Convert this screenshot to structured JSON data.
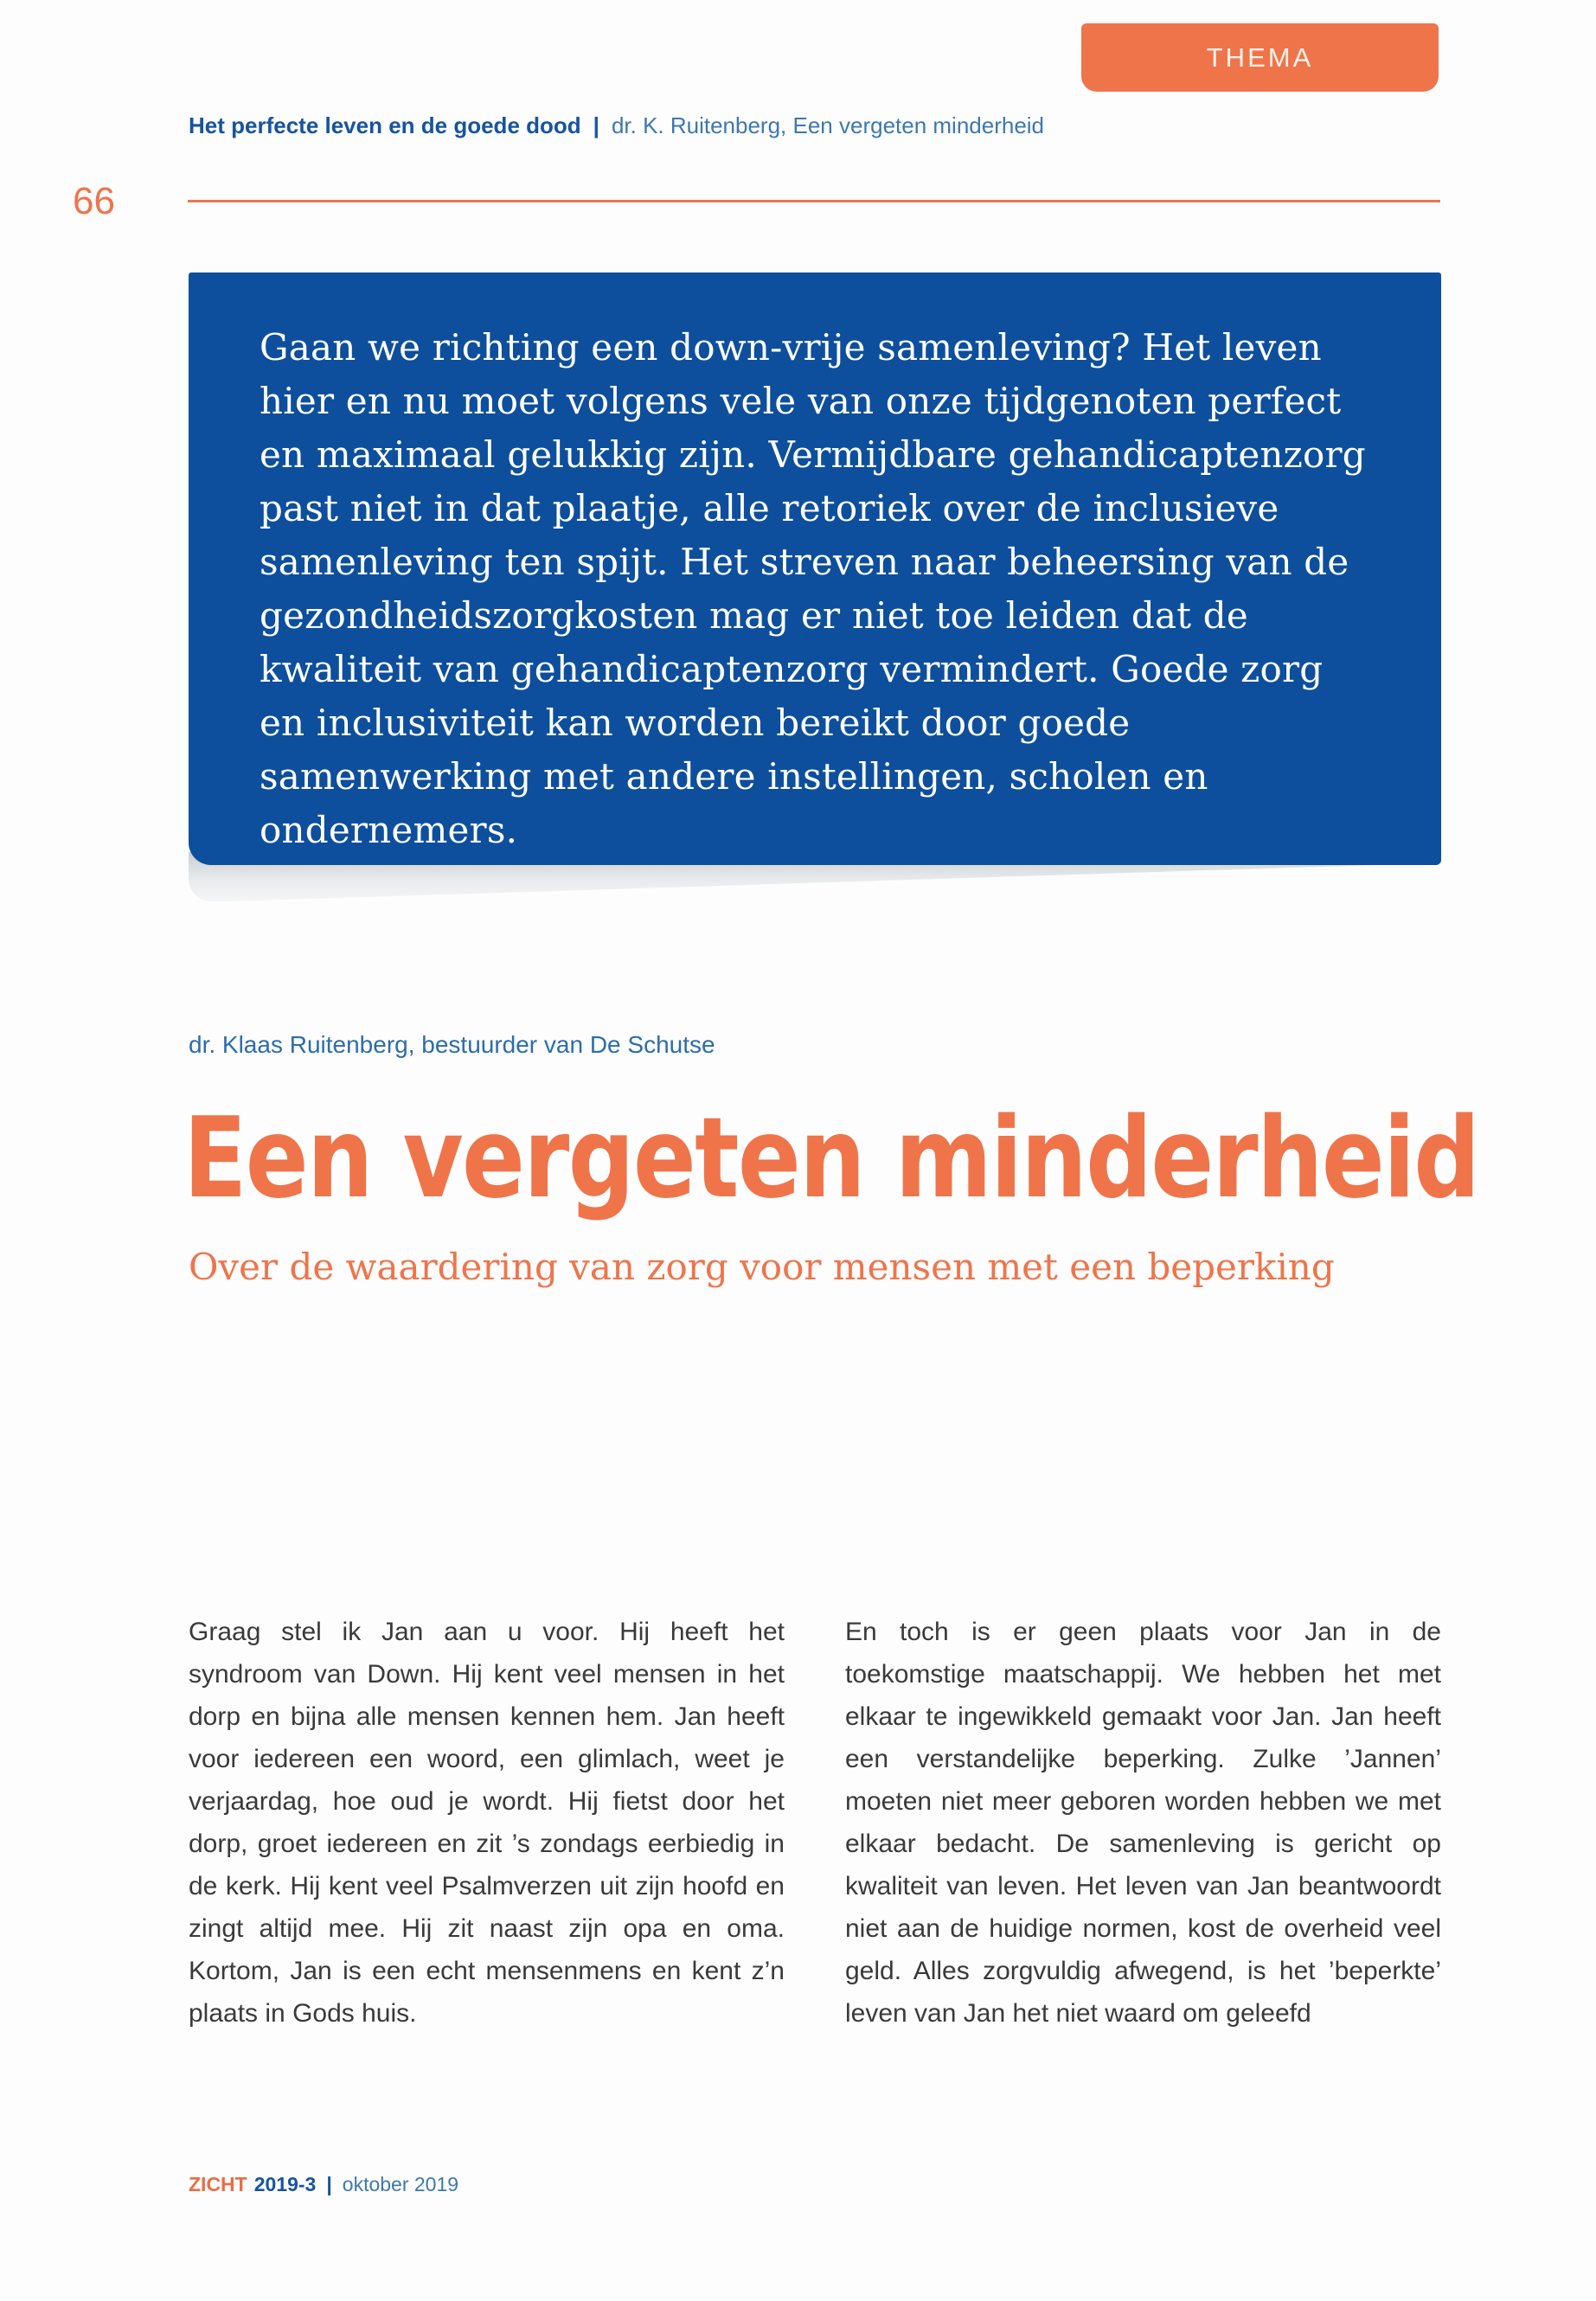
{
  "page": {
    "number": "66",
    "tab_label": "THEMA"
  },
  "header": {
    "title": "Het perfecte leven en de goede dood",
    "separator": "|",
    "subtitle": "dr. K. Ruitenberg, Een vergeten minderheid"
  },
  "intro_box": {
    "text": "Gaan we richting een down-vrije samenleving? Het leven hier en nu moet volgens vele van onze tijdgenoten perfect en maximaal gelukkig zijn. Vermijdbare gehandicaptenzorg past niet in dat plaatje, alle retoriek over de inclusieve samenleving ten spijt. Het streven naar beheersing van de gezondheidszorgkosten mag er niet toe leiden dat de kwaliteit van gehandicaptenzorg vermindert. Goede zorg en inclusiviteit kan worden bereikt door goede samenwerking met andere instellingen, scholen en ondernemers."
  },
  "article": {
    "author": "dr. Klaas Ruitenberg, bestuurder van De Schutse",
    "title": "Een vergeten minderheid",
    "subtitle": "Over de waardering van zorg voor mensen met een beperking",
    "body_left": "Graag stel ik Jan aan u voor. Hij heeft het syndroom van Down. Hij kent veel mensen in het dorp en bijna alle mensen kennen hem. Jan heeft voor iedereen een woord, een glimlach, weet je verjaardag, hoe oud je wordt. Hij fietst door het dorp, groet iedereen en zit ’s zondags eerbiedig in de kerk. Hij kent veel Psalmverzen uit zijn hoofd en zingt altijd mee. Hij zit naast zijn opa en oma. Kortom, Jan is een echt mensenmens en kent z’n plaats in Gods huis.",
    "body_right": "En toch is er geen plaats voor Jan in de toekomstige maatschappij. We hebben het met elkaar te ingewikkeld gemaakt voor Jan. Jan heeft een verstandelijke beperking. Zulke ’Jannen’ moeten niet meer geboren worden hebben we met elkaar bedacht. De samenleving is gericht op kwaliteit van leven. Het leven van Jan beantwoordt niet aan de huidige normen, kost de overheid veel geld. Alles zorgvuldig afwegend, is het ’beperkte’ leven van Jan het niet waard om geleefd"
  },
  "footer": {
    "brand": "ZICHT",
    "issue": "2019-3",
    "separator": "|",
    "date": "oktober 2019"
  },
  "colors": {
    "accent_orange": "#ef744a",
    "box_blue": "#0d4f9d",
    "navy_blue": "#17549e",
    "light_blue": "#3d78b0",
    "author_blue": "#2c6dac",
    "body_text": "#3a3a3a"
  }
}
